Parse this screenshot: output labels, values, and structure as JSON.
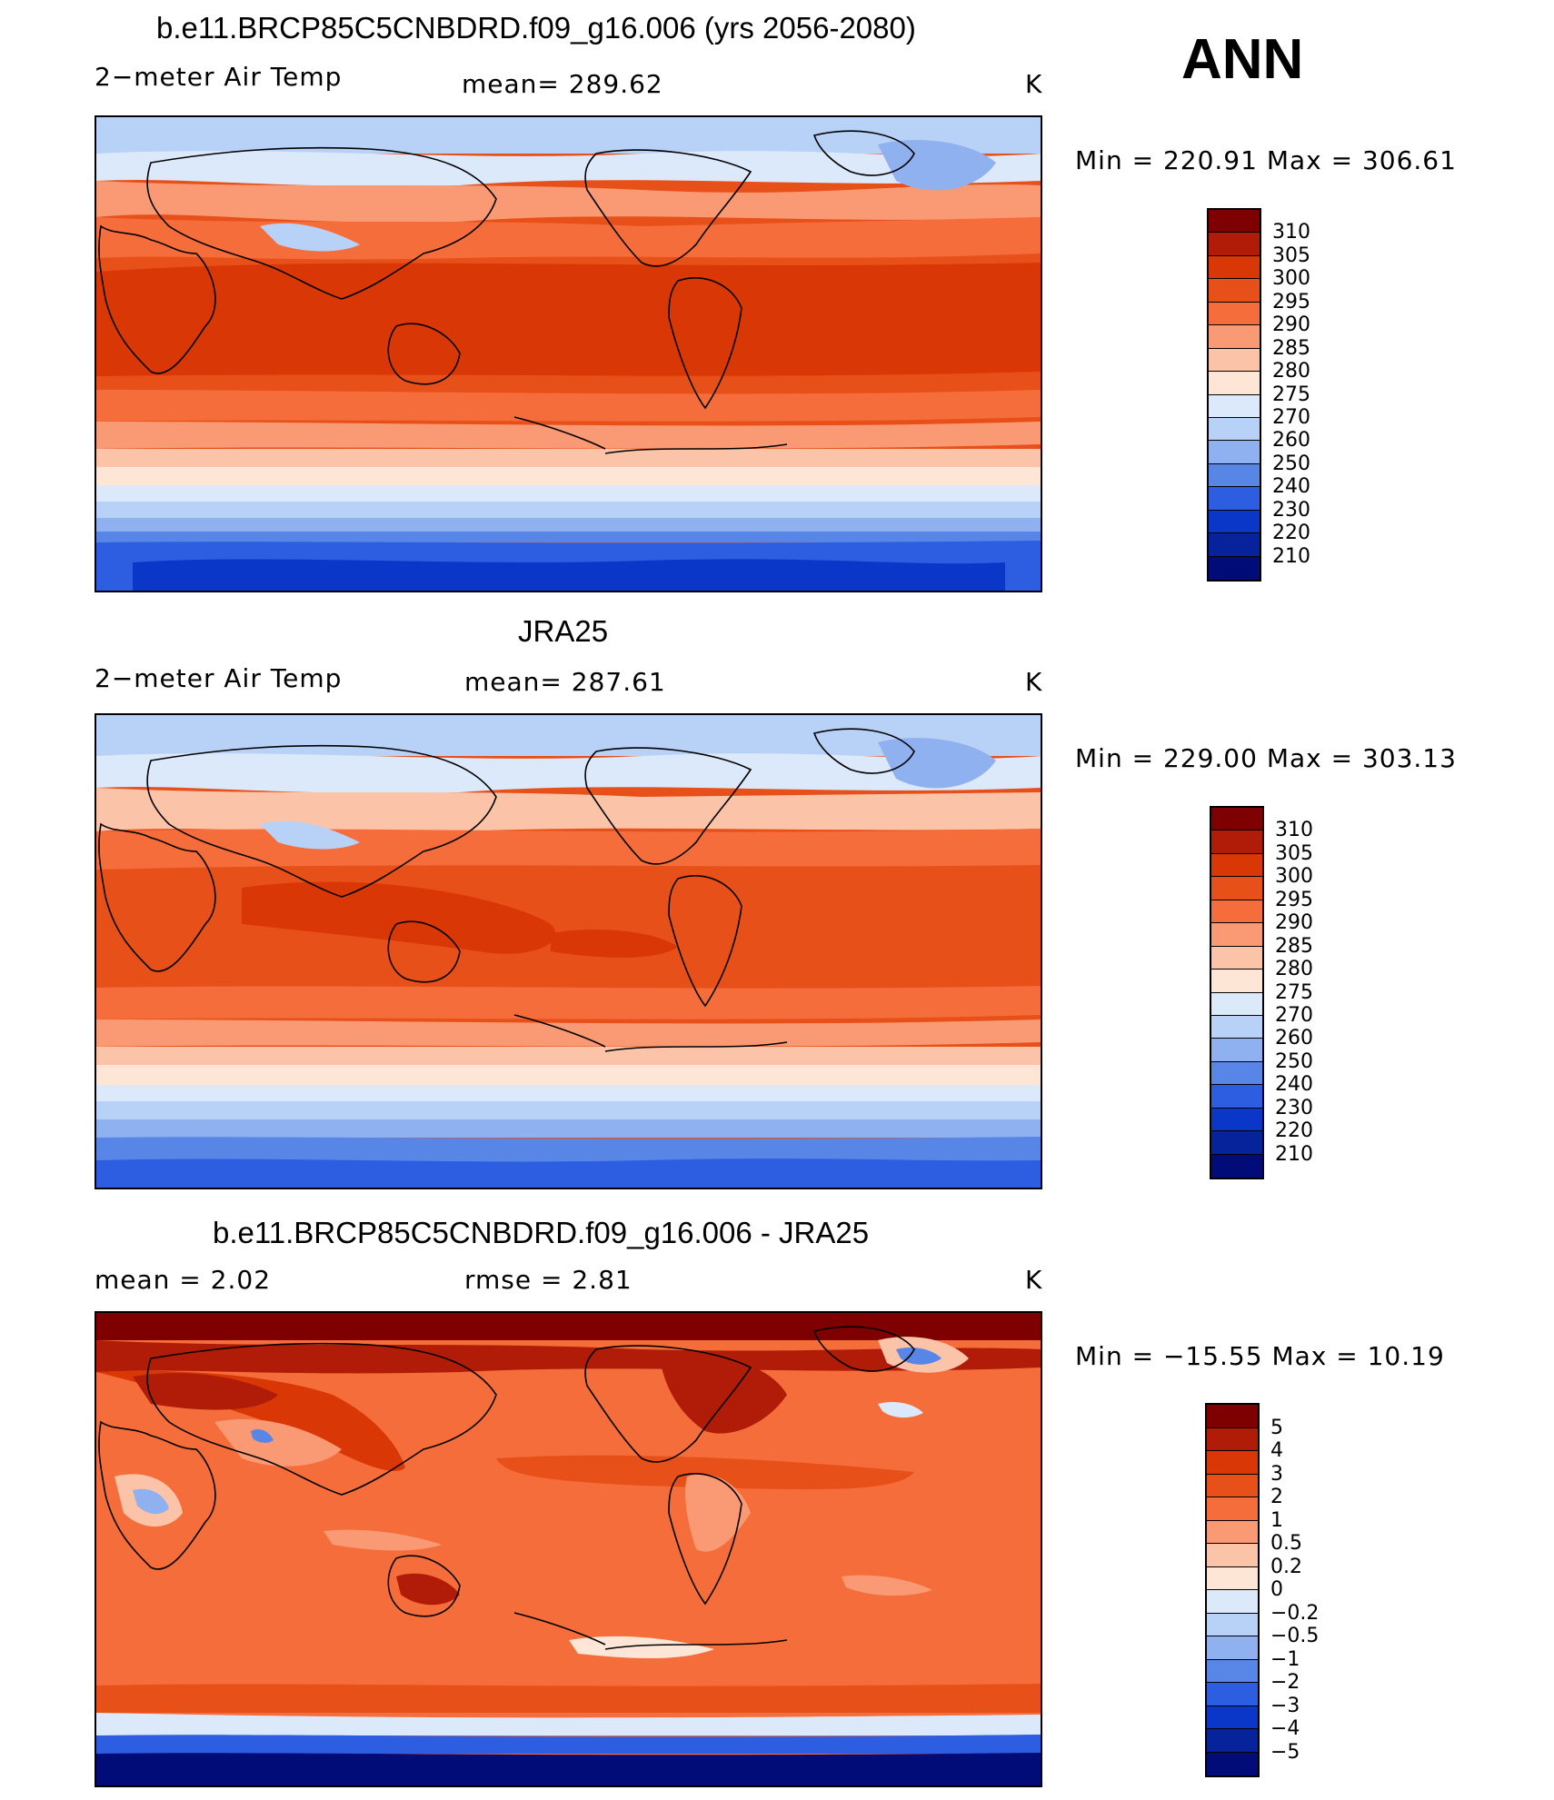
{
  "season": "ANN",
  "panels": [
    {
      "title": "b.e11.BRCP85C5CNBDRD.f09_g16.006 (yrs 2056-2080)",
      "left_label": "2−meter Air Temp",
      "center_label": "mean=  289.62",
      "units": "K",
      "minmax": "Min  =  220.91  Max  =  306.61",
      "colorbar": {
        "labels": [
          "310",
          "305",
          "300",
          "295",
          "290",
          "285",
          "280",
          "275",
          "270",
          "260",
          "250",
          "240",
          "230",
          "220",
          "210"
        ],
        "colors": [
          "#7f0000",
          "#b01c08",
          "#d93806",
          "#e8501a",
          "#f46d3a",
          "#f99a74",
          "#fbc3a8",
          "#fde6d6",
          "#dbe9fa",
          "#b8d1f6",
          "#8fb1f0",
          "#5886e6",
          "#2d5de0",
          "#0b37c8",
          "#07239c",
          "#020c78"
        ]
      }
    },
    {
      "title": "JRA25",
      "left_label": "2−meter Air Temp",
      "center_label": "mean=  287.61",
      "units": "K",
      "minmax": "Min  =  229.00  Max  =  303.13",
      "colorbar": {
        "labels": [
          "310",
          "305",
          "300",
          "295",
          "290",
          "285",
          "280",
          "275",
          "270",
          "260",
          "250",
          "240",
          "230",
          "220",
          "210"
        ],
        "colors": [
          "#7f0000",
          "#b01c08",
          "#d93806",
          "#e8501a",
          "#f46d3a",
          "#f99a74",
          "#fbc3a8",
          "#fde6d6",
          "#dbe9fa",
          "#b8d1f6",
          "#8fb1f0",
          "#5886e6",
          "#2d5de0",
          "#0b37c8",
          "#07239c",
          "#020c78"
        ]
      }
    },
    {
      "title": "b.e11.BRCP85C5CNBDRD.f09_g16.006 - JRA25",
      "left_label": "mean  =      2.02",
      "center_label": "rmse  =      2.81",
      "units": "K",
      "minmax": "Min  =  −15.55  Max  =    10.19",
      "colorbar": {
        "labels": [
          "5",
          "4",
          "3",
          "2",
          "1",
          "0.5",
          "0.2",
          "0",
          "−0.2",
          "−0.5",
          "−1",
          "−2",
          "−3",
          "−4",
          "−5"
        ],
        "colors": [
          "#7f0000",
          "#b01c08",
          "#d93806",
          "#e8501a",
          "#f46d3a",
          "#f99a74",
          "#fbc3a8",
          "#fde6d6",
          "#dbe9fa",
          "#b8d1f6",
          "#8fb1f0",
          "#5886e6",
          "#2d5de0",
          "#0b37c8",
          "#07239c",
          "#020c78"
        ]
      }
    }
  ]
}
